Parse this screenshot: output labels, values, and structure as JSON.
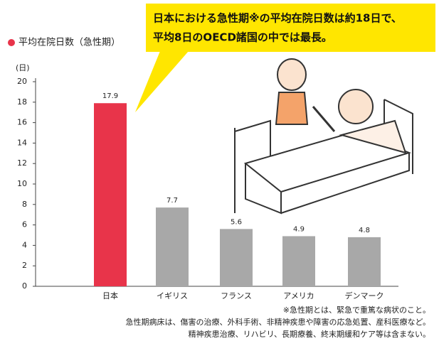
{
  "chart_data": {
    "type": "bar",
    "legend": "平均在院日数（急性期）",
    "callout": [
      "日本における急性期※の平均在院日数は約18日で、",
      "平均8日のOECD諸国の中では最長。"
    ],
    "y_label": "(日)",
    "categories": [
      "日本",
      "イギリス",
      "フランス",
      "アメリカ",
      "デンマーク"
    ],
    "values": [
      17.9,
      7.7,
      5.6,
      4.9,
      4.8
    ],
    "colors": [
      "#e8344a",
      "#a8a8a8",
      "#a8a8a8",
      "#a8a8a8",
      "#a8a8a8"
    ],
    "ylim": [
      0,
      20
    ],
    "yticks": [
      0,
      2,
      4,
      6,
      8,
      10,
      12,
      14,
      16,
      18,
      20
    ],
    "notes": [
      "※急性期とは、緊急で重篤な病状のこと。",
      "急性期病床は、傷害の治療、外科手術、非精神疾患や障害の応急処置、産科医療など。",
      "精神疾患治療、リハビリ、長期療養、終末期緩和ケア等は含まない。"
    ]
  }
}
